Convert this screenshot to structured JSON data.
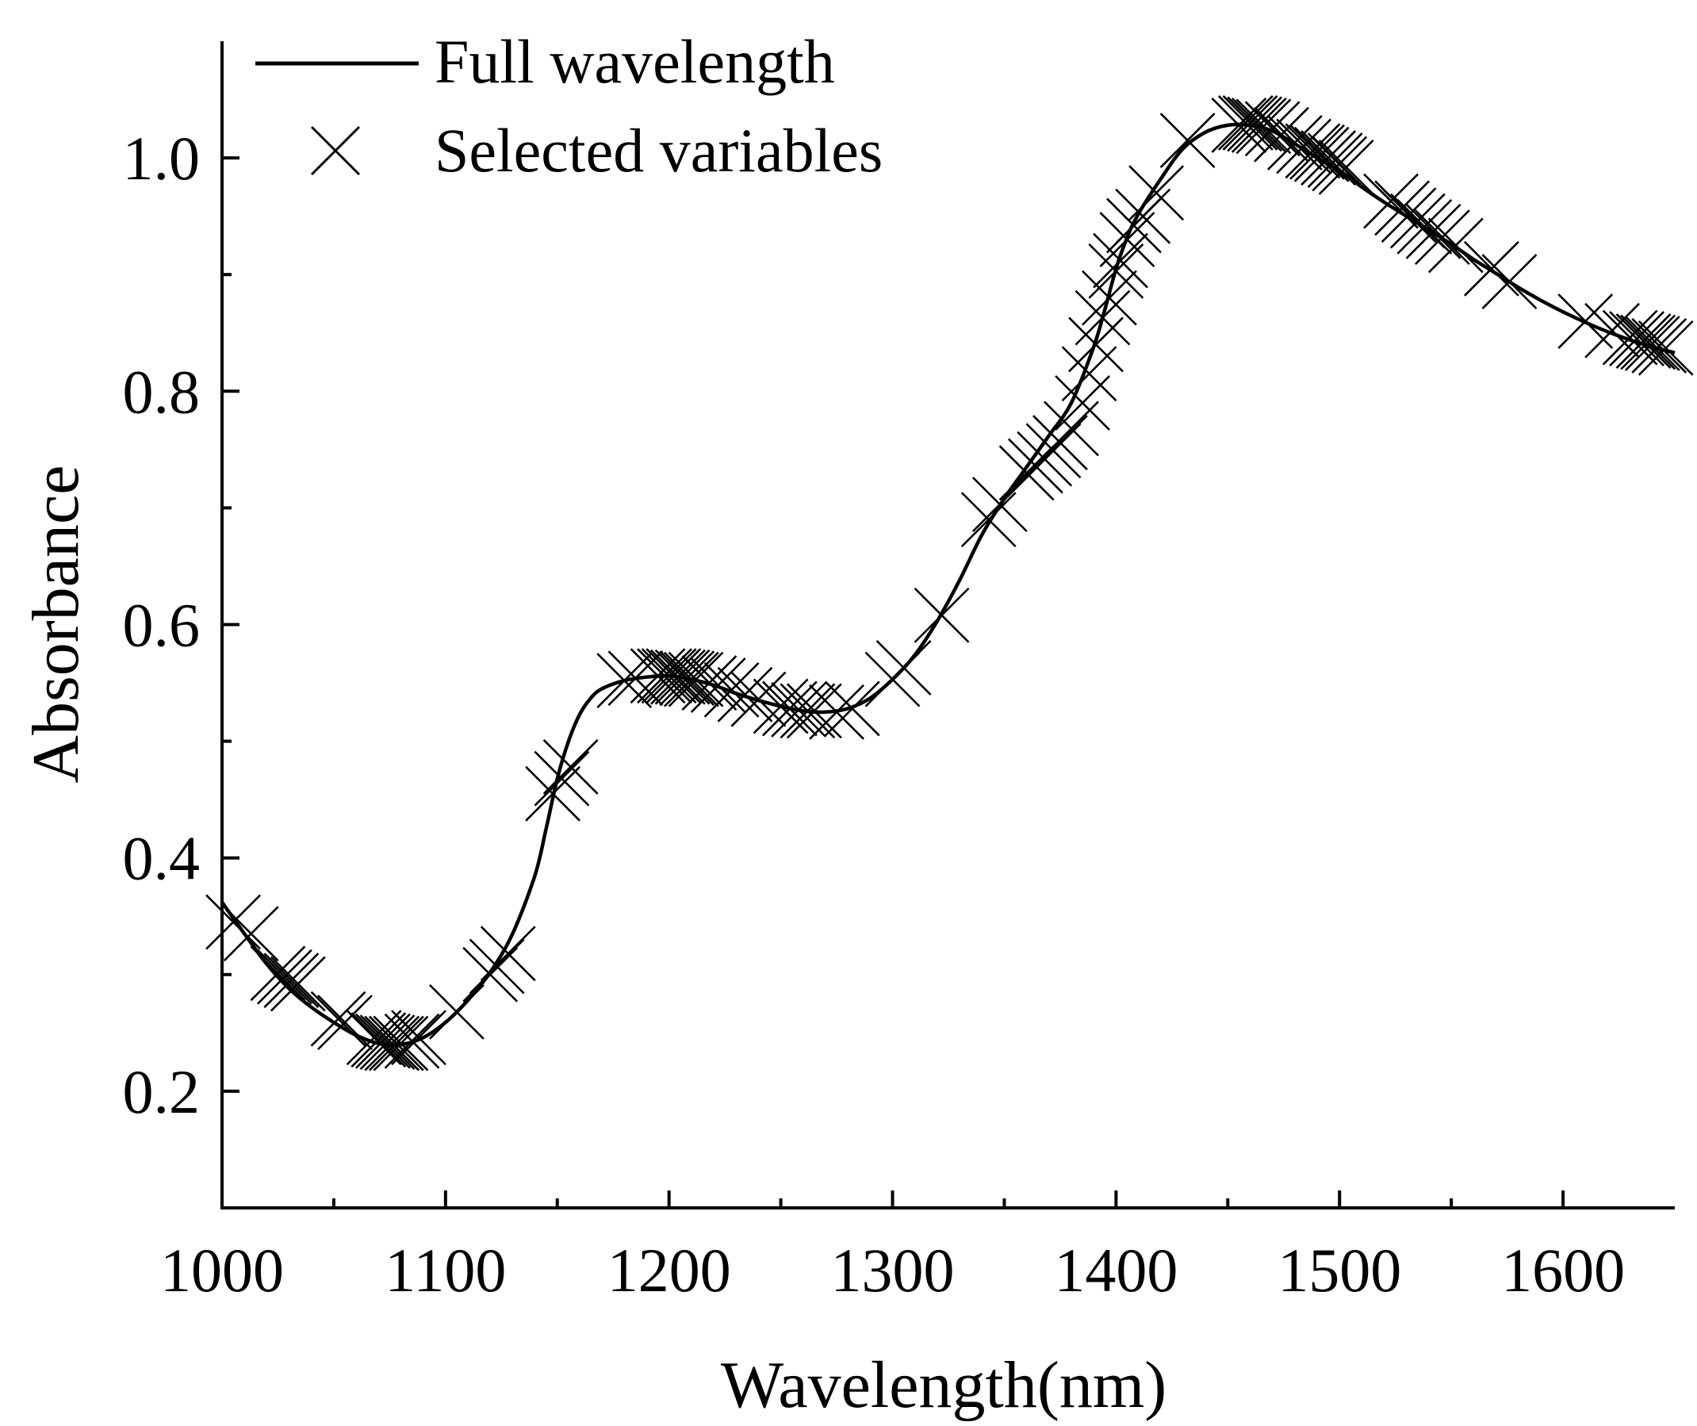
{
  "chart_data": {
    "type": "line",
    "title": "",
    "xlabel": "Wavelength(nm)",
    "ylabel": "Absorbance",
    "xlim": [
      1000,
      1650
    ],
    "ylim": [
      0.1,
      1.1
    ],
    "x_ticks": [
      1000,
      1100,
      1200,
      1300,
      1400,
      1500,
      1600
    ],
    "x_tick_labels": [
      "1000",
      "1100",
      "1200",
      "1300",
      "1400",
      "1500",
      "1600"
    ],
    "y_ticks": [
      0.2,
      0.4,
      0.6,
      0.8,
      1.0
    ],
    "y_tick_labels": [
      "0.2",
      "0.4",
      "0.6",
      "0.8",
      "1.0"
    ],
    "y_minor_ticks": [
      0.1,
      0.3,
      0.5,
      0.7,
      0.9
    ],
    "legend_position": "top-left",
    "series": [
      {
        "name": "Full wavelength",
        "style": "solid-line",
        "x": [
          1000,
          1010,
          1020,
          1030,
          1040,
          1050,
          1060,
          1070,
          1080,
          1090,
          1100,
          1110,
          1120,
          1130,
          1140,
          1145,
          1150,
          1155,
          1160,
          1165,
          1170,
          1180,
          1190,
          1200,
          1210,
          1220,
          1230,
          1240,
          1250,
          1260,
          1270,
          1280,
          1290,
          1300,
          1310,
          1320,
          1330,
          1340,
          1350,
          1360,
          1370,
          1380,
          1390,
          1395,
          1400,
          1405,
          1410,
          1420,
          1430,
          1440,
          1450,
          1460,
          1470,
          1480,
          1490,
          1500,
          1510,
          1520,
          1530,
          1540,
          1550,
          1560,
          1570,
          1580,
          1590,
          1600,
          1610,
          1620,
          1630,
          1640,
          1650
        ],
        "y": [
          0.362,
          0.335,
          0.309,
          0.288,
          0.272,
          0.259,
          0.248,
          0.241,
          0.24,
          0.246,
          0.259,
          0.278,
          0.302,
          0.335,
          0.385,
          0.425,
          0.468,
          0.5,
          0.523,
          0.537,
          0.545,
          0.552,
          0.555,
          0.556,
          0.553,
          0.548,
          0.541,
          0.535,
          0.53,
          0.526,
          0.525,
          0.528,
          0.537,
          0.553,
          0.574,
          0.603,
          0.638,
          0.677,
          0.708,
          0.735,
          0.762,
          0.79,
          0.838,
          0.87,
          0.905,
          0.932,
          0.952,
          0.982,
          1.008,
          1.022,
          1.028,
          1.028,
          1.023,
          1.012,
          1.0,
          0.989,
          0.975,
          0.962,
          0.95,
          0.938,
          0.926,
          0.913,
          0.901,
          0.889,
          0.878,
          0.868,
          0.859,
          0.851,
          0.844,
          0.838,
          0.833
        ]
      },
      {
        "name": "Selected variables",
        "style": "x-markers",
        "x": [
          1005,
          1013,
          1025,
          1028,
          1031,
          1034,
          1052,
          1055,
          1068,
          1070,
          1072,
          1074,
          1076,
          1078,
          1080,
          1085,
          1088,
          1105,
          1120,
          1123,
          1128,
          1148,
          1152,
          1156,
          1180,
          1185,
          1195,
          1198,
          1200,
          1202,
          1204,
          1206,
          1208,
          1210,
          1212,
          1218,
          1222,
          1228,
          1234,
          1240,
          1250,
          1254,
          1258,
          1262,
          1265,
          1275,
          1282,
          1300,
          1305,
          1322,
          1343,
          1348,
          1360,
          1364,
          1368,
          1372,
          1375,
          1380,
          1385,
          1388,
          1391,
          1394,
          1397,
          1400,
          1402,
          1405,
          1408,
          1412,
          1418,
          1432,
          1455,
          1458,
          1460,
          1462,
          1464,
          1466,
          1470,
          1474,
          1480,
          1484,
          1488,
          1490,
          1492,
          1495,
          1498,
          1500,
          1503,
          1523,
          1528,
          1531,
          1535,
          1538,
          1542,
          1546,
          1552,
          1568,
          1576,
          1610,
          1622,
          1630,
          1633,
          1636,
          1638,
          1640,
          1643,
          1646
        ],
        "y": [
          0.345,
          0.335,
          0.301,
          0.298,
          0.295,
          0.292,
          0.262,
          0.259,
          0.246,
          0.244,
          0.243,
          0.242,
          0.241,
          0.241,
          0.241,
          0.243,
          0.246,
          0.268,
          0.3,
          0.307,
          0.318,
          0.455,
          0.468,
          0.478,
          0.552,
          0.554,
          0.556,
          0.556,
          0.556,
          0.556,
          0.555,
          0.555,
          0.554,
          0.553,
          0.553,
          0.55,
          0.548,
          0.544,
          0.54,
          0.536,
          0.53,
          0.528,
          0.527,
          0.526,
          0.526,
          0.525,
          0.528,
          0.553,
          0.563,
          0.608,
          0.69,
          0.703,
          0.73,
          0.736,
          0.742,
          0.749,
          0.756,
          0.768,
          0.79,
          0.815,
          0.84,
          0.863,
          0.88,
          0.903,
          0.912,
          0.93,
          0.942,
          0.95,
          0.97,
          1.015,
          1.028,
          1.03,
          1.03,
          1.029,
          1.028,
          1.027,
          1.025,
          1.02,
          1.013,
          1.01,
          1.006,
          1.005,
          1.003,
          1.0,
          0.998,
          0.995,
          0.992,
          0.963,
          0.957,
          0.951,
          0.946,
          0.941,
          0.937,
          0.932,
          0.925,
          0.905,
          0.894,
          0.86,
          0.852,
          0.846,
          0.845,
          0.843,
          0.842,
          0.841,
          0.839,
          0.837
        ]
      }
    ]
  }
}
